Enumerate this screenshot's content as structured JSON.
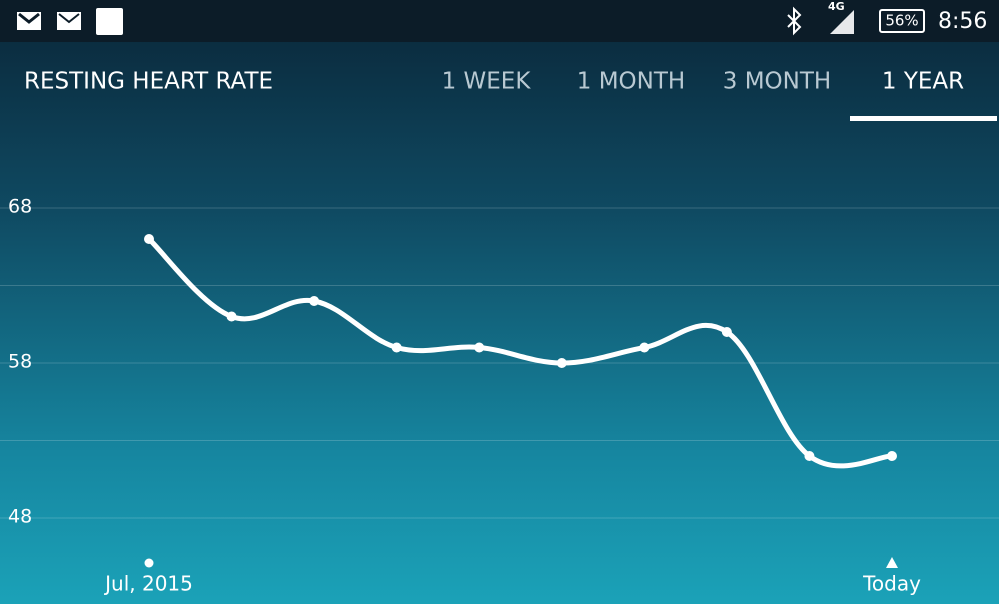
{
  "status_bar": {
    "network": "4G",
    "battery": "56%",
    "time": "8:56"
  },
  "header": {
    "title": "RESTING HEART RATE",
    "tabs": [
      {
        "label": "1 WEEK",
        "selected": false
      },
      {
        "label": "1 MONTH",
        "selected": false
      },
      {
        "label": "3 MONTH",
        "selected": false
      },
      {
        "label": "1 YEAR",
        "selected": true
      }
    ]
  },
  "chart_data": {
    "type": "line",
    "categories": [
      "Jul, 2015",
      null,
      null,
      null,
      null,
      null,
      null,
      null,
      null,
      "Today"
    ],
    "values": [
      66,
      61,
      62,
      59,
      59,
      58,
      59,
      60,
      52,
      52
    ],
    "color": "#ffffff",
    "ylim": [
      48,
      68
    ],
    "yticks": [
      48,
      58,
      68
    ],
    "minor_yticks": [
      53,
      63
    ],
    "grid": true
  }
}
